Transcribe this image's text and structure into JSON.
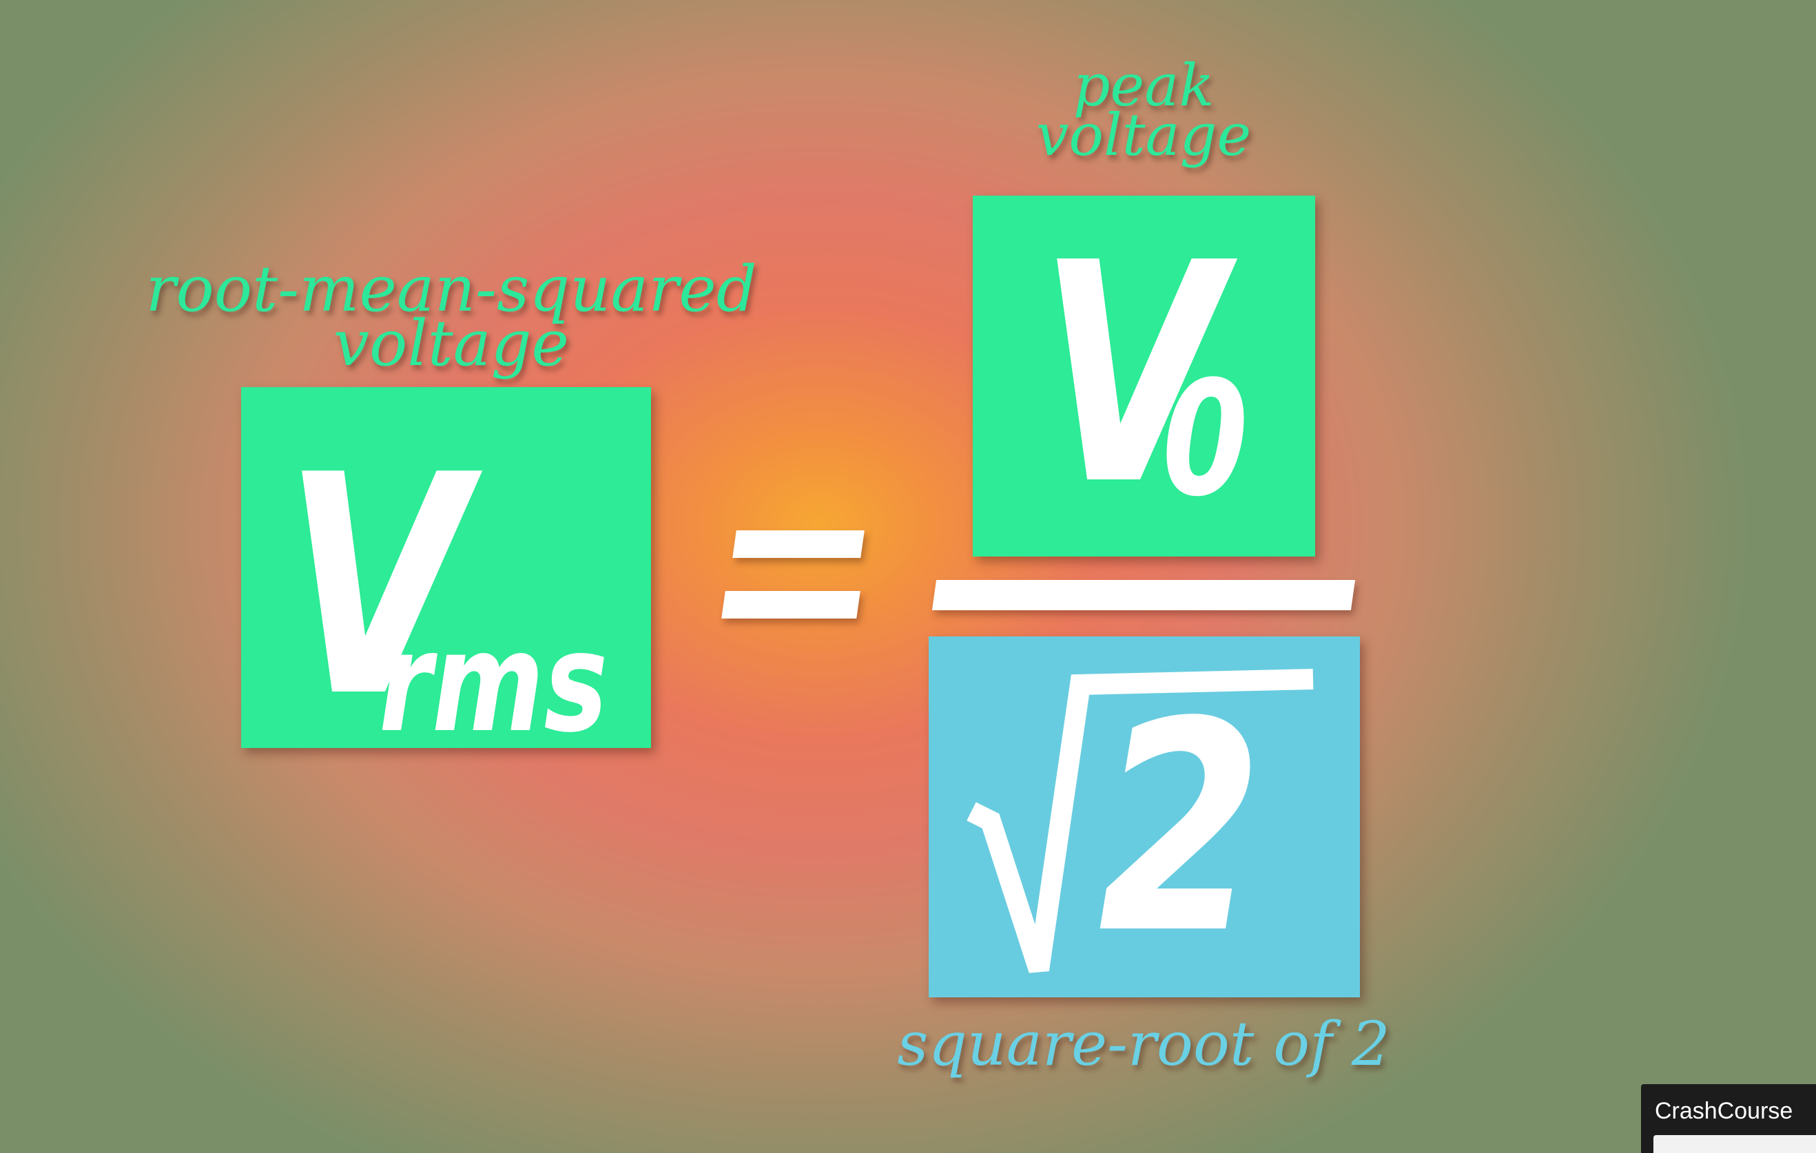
{
  "equation": {
    "lhs": {
      "caption_line1": "root-mean-squared",
      "caption_line2": "voltage",
      "symbol": "V",
      "subscript": "rms"
    },
    "equals_sign": "=",
    "numerator": {
      "caption_line1": "peak",
      "caption_line2": "voltage",
      "symbol": "V",
      "subscript": "0"
    },
    "denominator": {
      "caption": "square-root of 2",
      "radical_symbol": "√",
      "radicand": "2"
    }
  },
  "channel_badge": {
    "label": "CrashCourse"
  },
  "colors": {
    "green": "#2deb96",
    "blue": "#68cce0",
    "white": "#ffffff",
    "center_glow": "#f7a733",
    "badge_bg": "#1c1c1c"
  }
}
